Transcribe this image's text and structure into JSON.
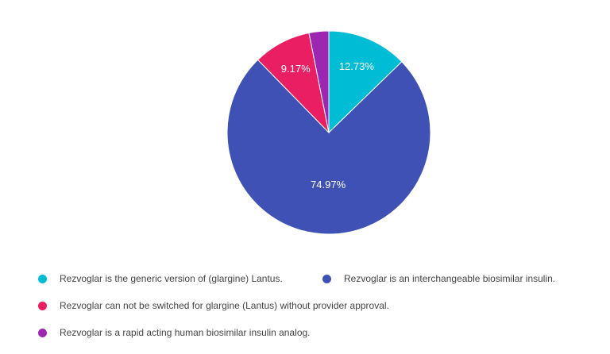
{
  "chart_data": {
    "type": "pie",
    "slices": [
      {
        "label": "Rezvoglar is the generic version of (glargine) Lantus.",
        "value": 12.73,
        "display": "12.73%",
        "color": "#00bcd4"
      },
      {
        "label": "Rezvoglar is an interchangeable biosimilar insulin.",
        "value": 74.97,
        "display": "74.97%",
        "color": "#3f51b5"
      },
      {
        "label": "Rezvoglar can not be switched for glargine (Lantus) without provider approval.",
        "value": 9.17,
        "display": "9.17%",
        "color": "#e91e63"
      },
      {
        "label": "Rezvoglar is a rapid acting human biosimilar insulin analog.",
        "value": 3.13,
        "display": "",
        "color": "#9c27b0"
      }
    ],
    "legend_position": "bottom"
  }
}
